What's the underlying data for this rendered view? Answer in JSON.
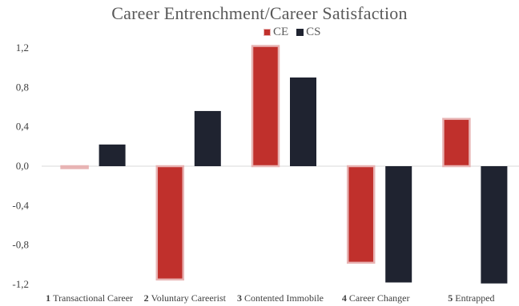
{
  "chart_data": {
    "type": "bar",
    "title": "Career Entrenchment/Career Satisfaction",
    "categories": [
      {
        "num": "1",
        "label": "Transactional Career"
      },
      {
        "num": "2",
        "label": "Voluntary Careerist"
      },
      {
        "num": "3",
        "label": "Contented Immobile"
      },
      {
        "num": "4",
        "label": "Career Changer"
      },
      {
        "num": "5",
        "label": "Entrapped"
      }
    ],
    "series": [
      {
        "name": "CE",
        "color": "#c0302c",
        "outline": "#e8b4b4",
        "values": [
          -0.02,
          -1.15,
          1.22,
          -0.98,
          0.48
        ]
      },
      {
        "name": "CS",
        "color": "#1f2330",
        "values": [
          0.22,
          0.56,
          0.9,
          -1.18,
          -1.19
        ]
      }
    ],
    "ylim": [
      -1.2,
      1.2
    ],
    "yticks": [
      "1,2",
      "0,8",
      "0,4",
      "0,0",
      "-0,4",
      "-0,8",
      "-1,2"
    ],
    "ytick_values": [
      1.2,
      0.8,
      0.4,
      0.0,
      -0.4,
      -0.8,
      -1.2
    ],
    "xlabel": "",
    "ylabel": "",
    "legend_position": "top-center",
    "grid": false
  }
}
